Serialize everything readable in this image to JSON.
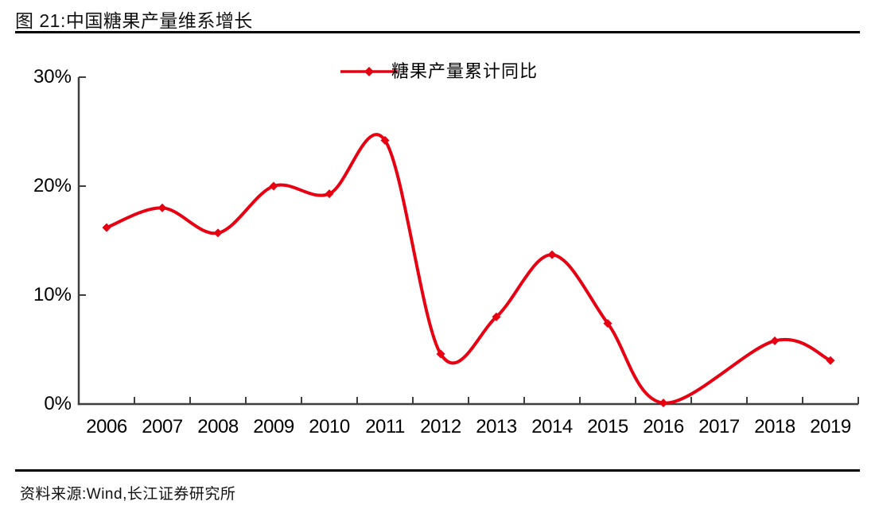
{
  "page": {
    "title": "图 21:中国糖果产量维系增长",
    "source": "资料来源:Wind,长江证券研究所"
  },
  "chart_data": {
    "type": "line",
    "title": "图 21:中国糖果产量维系增长",
    "legend_position": "top-center",
    "categories": [
      2006,
      2007,
      2008,
      2009,
      2010,
      2011,
      2012,
      2013,
      2014,
      2015,
      2016,
      2017,
      2018,
      2019
    ],
    "series": [
      {
        "name": "糖果产量累计同比",
        "color": "#e60012",
        "marker": "diamond",
        "values": [
          16.2,
          18.0,
          15.7,
          20.0,
          19.3,
          24.2,
          4.6,
          8.0,
          13.7,
          7.4,
          0.1,
          null,
          5.8,
          4.0
        ]
      }
    ],
    "ylabel": "",
    "xlabel": "",
    "ylim": [
      0,
      30
    ],
    "ytick_labels": [
      "0%",
      "10%",
      "20%",
      "30%"
    ],
    "grid": false,
    "smooth": true,
    "axis_color": "#3f3f3f",
    "text_color": "#000000"
  }
}
